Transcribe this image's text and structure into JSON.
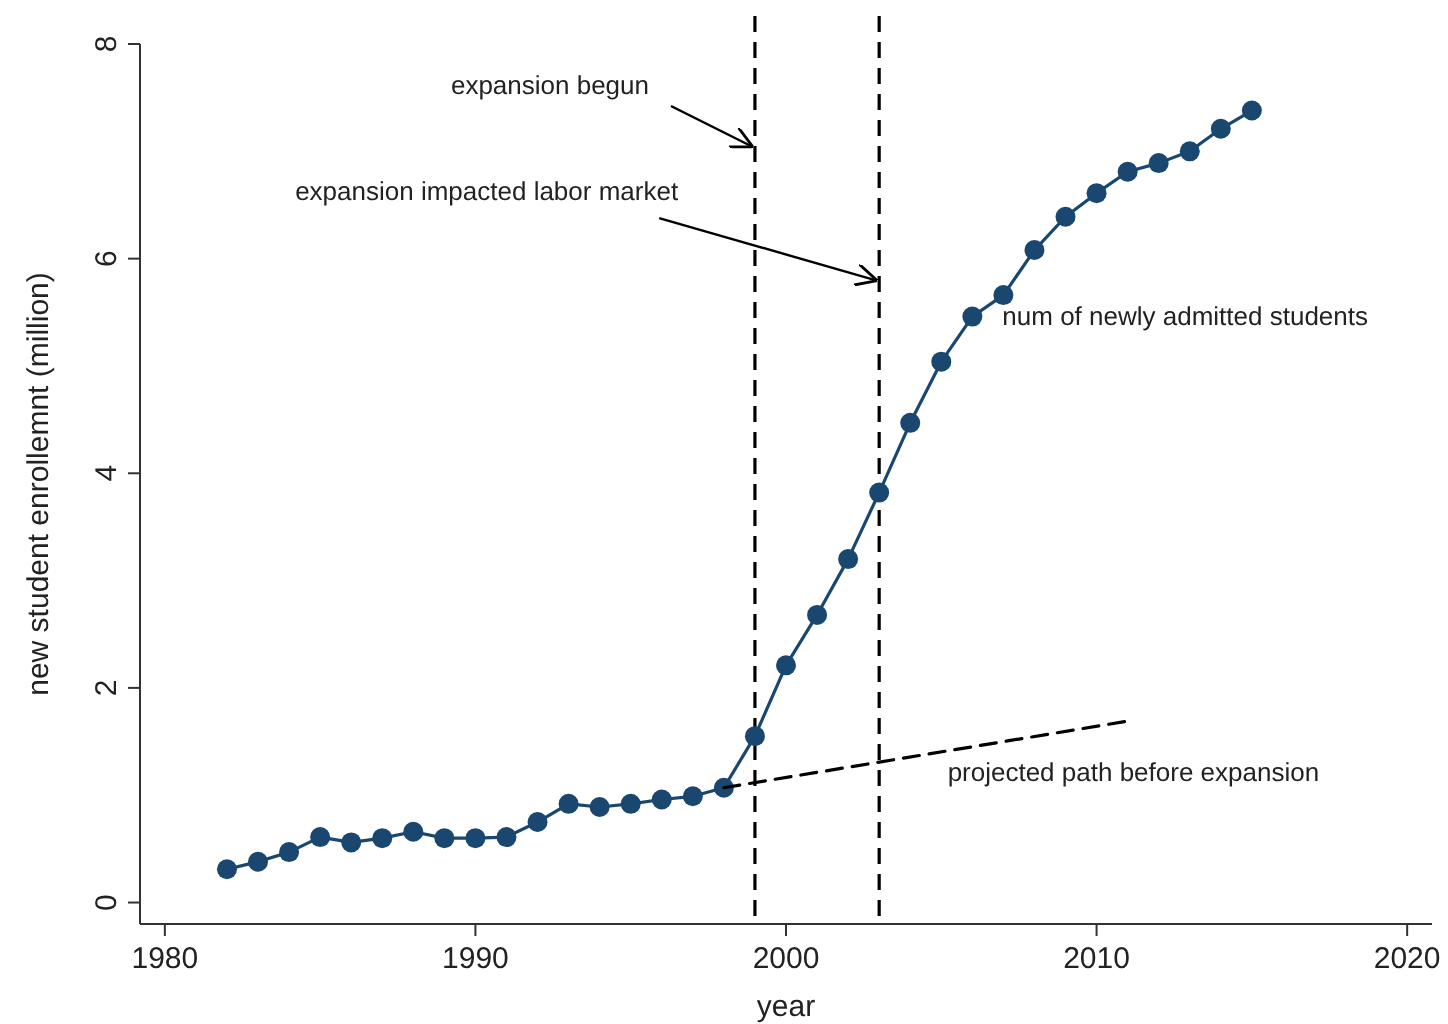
{
  "chart_data": {
    "type": "line",
    "xlabel": "year",
    "ylabel": "new student enrollemnt (million)",
    "xlim": [
      1979.2,
      2020.8
    ],
    "xticks": [
      1980,
      1990,
      2000,
      2010,
      2020
    ],
    "ylim": [
      -0.2,
      8
    ],
    "yticks": [
      0,
      2,
      4,
      6,
      8
    ],
    "grid": false,
    "legend": false,
    "series": [
      {
        "name": "num of newly admitted students",
        "color": "#1a476f",
        "marker": "circle",
        "line_style": "solid",
        "x": [
          1982,
          1983,
          1984,
          1985,
          1986,
          1987,
          1988,
          1989,
          1990,
          1991,
          1992,
          1993,
          1994,
          1995,
          1996,
          1997,
          1998,
          1999,
          2000,
          2001,
          2002,
          2003,
          2004,
          2005,
          2006,
          2007,
          2008,
          2009,
          2010,
          2011,
          2012,
          2013,
          2014,
          2015
        ],
        "values": [
          0.31,
          0.38,
          0.47,
          0.61,
          0.56,
          0.6,
          0.66,
          0.6,
          0.6,
          0.61,
          0.75,
          0.92,
          0.89,
          0.92,
          0.96,
          0.99,
          1.07,
          1.55,
          2.21,
          2.68,
          3.2,
          3.82,
          4.47,
          5.04,
          5.46,
          5.66,
          6.08,
          6.39,
          6.61,
          6.81,
          6.89,
          7.0,
          7.21,
          7.38
        ]
      },
      {
        "name": "projected path before expansion",
        "color": "#000000",
        "marker": "none",
        "line_style": "dashed",
        "x": [
          1998,
          2011
        ],
        "values": [
          1.07,
          1.69
        ]
      }
    ],
    "ref_lines": [
      {
        "axis": "x",
        "value": 1999,
        "color": "#000000",
        "line_style": "dashed"
      },
      {
        "axis": "x",
        "value": 2003,
        "color": "#000000",
        "line_style": "dashed"
      }
    ],
    "annotations": [
      {
        "text": "expansion begun",
        "x": 1999,
        "y": 7.05
      },
      {
        "text": "expansion impacted labor market",
        "x": 2003,
        "y": 5.8
      }
    ]
  }
}
